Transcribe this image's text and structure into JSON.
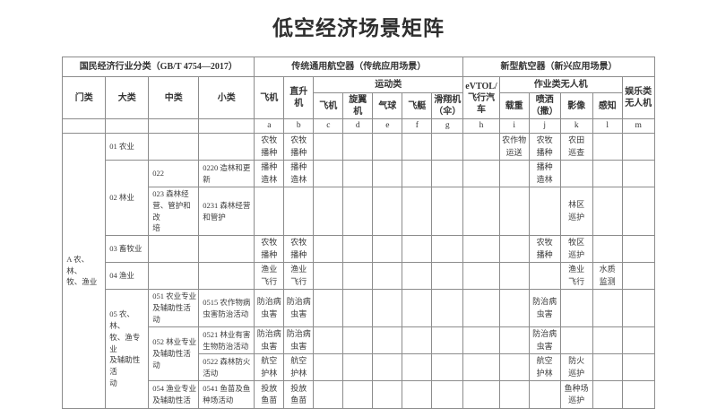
{
  "title": "低空经济场景矩阵",
  "colors": {
    "background": "#ffffff",
    "border": "#8c8c8c",
    "text": "#3a3a3a",
    "title": "#2e2e2e"
  },
  "table": {
    "header_rows": [
      [
        {
          "t": "国民经济行业分类（GB/T 4754—2017）",
          "c": 4
        },
        {
          "t": "传统通用航空器（传统应用场景）",
          "c": 7
        },
        {
          "t": "新型航空器（新兴应用场景）",
          "c": 6
        }
      ],
      [
        {
          "t": "门类",
          "r": 2
        },
        {
          "t": "大类",
          "r": 2
        },
        {
          "t": "中类",
          "r": 2
        },
        {
          "t": "小类",
          "r": 2
        },
        {
          "t": "飞机",
          "r": 2
        },
        {
          "t": "直升机",
          "r": 2
        },
        {
          "t": "运动类",
          "c": 5
        },
        {
          "t": "eVTOL/\n飞行汽\n车",
          "r": 2
        },
        {
          "t": "作业类无人机",
          "c": 4
        },
        {
          "t": "娱乐类\n无人机",
          "r": 2
        }
      ],
      [
        {
          "t": "飞机"
        },
        {
          "t": "旋翼机"
        },
        {
          "t": "气球"
        },
        {
          "t": "飞艇"
        },
        {
          "t": "滑翔机\n（伞）"
        },
        {
          "t": "载重"
        },
        {
          "t": "喷洒\n（撒）"
        },
        {
          "t": "影像"
        },
        {
          "t": "感知"
        }
      ],
      [
        {
          "t": "",
          "k": "lt"
        },
        {
          "t": "",
          "k": "lt"
        },
        {
          "t": "",
          "k": "lt"
        },
        {
          "t": "",
          "k": "lt"
        },
        {
          "t": "a",
          "k": "lt"
        },
        {
          "t": "b",
          "k": "lt"
        },
        {
          "t": "c",
          "k": "lt"
        },
        {
          "t": "d",
          "k": "lt"
        },
        {
          "t": "e",
          "k": "lt"
        },
        {
          "t": "f",
          "k": "lt"
        },
        {
          "t": "g",
          "k": "lt"
        },
        {
          "t": "h",
          "k": "lt"
        },
        {
          "t": "i",
          "k": "lt"
        },
        {
          "t": "j",
          "k": "lt"
        },
        {
          "t": "k",
          "k": "lt"
        },
        {
          "t": "l",
          "k": "lt"
        },
        {
          "t": "m",
          "k": "lt"
        }
      ]
    ],
    "body_rows": [
      [
        {
          "t": "A 农、林、\n牧、渔业",
          "r": 9,
          "a": "l"
        },
        {
          "t": "01 农业",
          "a": "l"
        },
        {
          "t": "",
          "a": "l"
        },
        {
          "t": "",
          "a": "l"
        },
        {
          "t": "农牧\n播种"
        },
        {
          "t": "农牧\n播种"
        },
        {
          "t": ""
        },
        {
          "t": ""
        },
        {
          "t": ""
        },
        {
          "t": ""
        },
        {
          "t": ""
        },
        {
          "t": ""
        },
        {
          "t": "农作物\n运送"
        },
        {
          "t": "农牧\n播种"
        },
        {
          "t": "农田\n巡查"
        },
        {
          "t": ""
        },
        {
          "t": ""
        }
      ],
      [
        {
          "t": "02 林业",
          "r": 2,
          "a": "l"
        },
        {
          "t": "022",
          "a": "l"
        },
        {
          "t": "0220 造林和更\n新",
          "a": "l"
        },
        {
          "t": "播种\n造林"
        },
        {
          "t": "播种\n造林"
        },
        {
          "t": ""
        },
        {
          "t": ""
        },
        {
          "t": ""
        },
        {
          "t": ""
        },
        {
          "t": ""
        },
        {
          "t": ""
        },
        {
          "t": ""
        },
        {
          "t": "播种\n造林"
        },
        {
          "t": ""
        },
        {
          "t": ""
        },
        {
          "t": ""
        }
      ],
      [
        {
          "t": "023 森林经\n营、管护和改\n培",
          "a": "l"
        },
        {
          "t": "0231 森林经营\n和管护",
          "a": "l"
        },
        {
          "t": ""
        },
        {
          "t": ""
        },
        {
          "t": ""
        },
        {
          "t": ""
        },
        {
          "t": ""
        },
        {
          "t": ""
        },
        {
          "t": ""
        },
        {
          "t": ""
        },
        {
          "t": ""
        },
        {
          "t": ""
        },
        {
          "t": "林区\n巡护"
        },
        {
          "t": ""
        },
        {
          "t": ""
        }
      ],
      [
        {
          "t": "03 畜牧业",
          "a": "l"
        },
        {
          "t": "",
          "a": "l"
        },
        {
          "t": "",
          "a": "l"
        },
        {
          "t": "农牧\n播种"
        },
        {
          "t": "农牧\n播种"
        },
        {
          "t": ""
        },
        {
          "t": ""
        },
        {
          "t": ""
        },
        {
          "t": ""
        },
        {
          "t": ""
        },
        {
          "t": ""
        },
        {
          "t": ""
        },
        {
          "t": "农牧\n播种"
        },
        {
          "t": "牧区\n巡护"
        },
        {
          "t": ""
        },
        {
          "t": ""
        }
      ],
      [
        {
          "t": "04 渔业",
          "a": "l"
        },
        {
          "t": "",
          "a": "l"
        },
        {
          "t": "",
          "a": "l"
        },
        {
          "t": "渔业\n飞行"
        },
        {
          "t": "渔业\n飞行"
        },
        {
          "t": ""
        },
        {
          "t": ""
        },
        {
          "t": ""
        },
        {
          "t": ""
        },
        {
          "t": ""
        },
        {
          "t": ""
        },
        {
          "t": ""
        },
        {
          "t": ""
        },
        {
          "t": "渔业\n飞行"
        },
        {
          "t": "水质\n监测"
        },
        {
          "t": ""
        }
      ],
      [
        {
          "t": "05 农、林、\n牧、渔专业\n及辅助性活\n动",
          "r": 4,
          "a": "l"
        },
        {
          "t": "051 农业专业\n及辅助性活\n动",
          "a": "l"
        },
        {
          "t": "0515 农作物病\n虫害防治活动",
          "a": "l"
        },
        {
          "t": "防治病\n虫害"
        },
        {
          "t": "防治病\n虫害"
        },
        {
          "t": ""
        },
        {
          "t": ""
        },
        {
          "t": ""
        },
        {
          "t": ""
        },
        {
          "t": ""
        },
        {
          "t": ""
        },
        {
          "t": ""
        },
        {
          "t": "防治病\n虫害"
        },
        {
          "t": ""
        },
        {
          "t": ""
        },
        {
          "t": ""
        }
      ],
      [
        {
          "t": "052 林业专业\n及辅助性活\n动",
          "r": 2,
          "a": "l"
        },
        {
          "t": "0521 林业有害\n生物防治活动",
          "a": "l"
        },
        {
          "t": "防治病\n虫害"
        },
        {
          "t": "防治病\n虫害"
        },
        {
          "t": ""
        },
        {
          "t": ""
        },
        {
          "t": ""
        },
        {
          "t": ""
        },
        {
          "t": ""
        },
        {
          "t": ""
        },
        {
          "t": ""
        },
        {
          "t": "防治病\n虫害"
        },
        {
          "t": ""
        },
        {
          "t": ""
        },
        {
          "t": ""
        }
      ],
      [
        {
          "t": "0522 森林防火\n活动",
          "a": "l"
        },
        {
          "t": "航空\n护林"
        },
        {
          "t": "航空\n护林"
        },
        {
          "t": ""
        },
        {
          "t": ""
        },
        {
          "t": ""
        },
        {
          "t": ""
        },
        {
          "t": ""
        },
        {
          "t": ""
        },
        {
          "t": ""
        },
        {
          "t": "航空\n护林"
        },
        {
          "t": "防火\n巡护"
        },
        {
          "t": ""
        },
        {
          "t": ""
        }
      ],
      [
        {
          "t": "054 渔业专业\n及辅助性活",
          "a": "l"
        },
        {
          "t": "0541 鱼苗及鱼\n种场活动",
          "a": "l"
        },
        {
          "t": "投放\n鱼苗"
        },
        {
          "t": "投放\n鱼苗"
        },
        {
          "t": ""
        },
        {
          "t": ""
        },
        {
          "t": ""
        },
        {
          "t": ""
        },
        {
          "t": ""
        },
        {
          "t": ""
        },
        {
          "t": ""
        },
        {
          "t": ""
        },
        {
          "t": "鱼种场\n巡护"
        },
        {
          "t": ""
        },
        {
          "t": ""
        }
      ]
    ]
  }
}
